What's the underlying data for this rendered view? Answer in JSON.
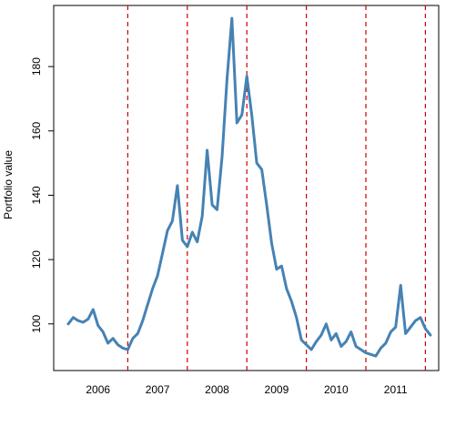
{
  "chart_data": {
    "type": "line",
    "title": "",
    "xlabel": "",
    "ylabel": "Portfolio value",
    "ylim": [
      85.5,
      199
    ],
    "yticks": [
      100,
      120,
      140,
      160,
      180
    ],
    "x_categories": [
      "2006",
      "2007",
      "2008",
      "2009",
      "2010",
      "2011"
    ],
    "year_boundaries": [
      "2007-01",
      "2008-01",
      "2009-01",
      "2010-01",
      "2011-01",
      "2012-01"
    ],
    "grid": false,
    "legend": "none",
    "series": [
      {
        "color": "#4682b4",
        "line_style": "solid",
        "points": [
          [
            "2006-01",
            100
          ],
          [
            "2006-02",
            102
          ],
          [
            "2006-03",
            101
          ],
          [
            "2006-04",
            100.5
          ],
          [
            "2006-05",
            101.5
          ],
          [
            "2006-06",
            104.5
          ],
          [
            "2006-07",
            99.5
          ],
          [
            "2006-08",
            97.5
          ],
          [
            "2006-09",
            94
          ],
          [
            "2006-10",
            95.5
          ],
          [
            "2006-11",
            93.5
          ],
          [
            "2006-12",
            92.5
          ],
          [
            "2007-01",
            92
          ],
          [
            "2007-02",
            95.5
          ],
          [
            "2007-03",
            97
          ],
          [
            "2007-04",
            101
          ],
          [
            "2007-05",
            106
          ],
          [
            "2007-06",
            111
          ],
          [
            "2007-07",
            115
          ],
          [
            "2007-08",
            122
          ],
          [
            "2007-09",
            129
          ],
          [
            "2007-10",
            132
          ],
          [
            "2007-11",
            143
          ],
          [
            "2007-12",
            126
          ],
          [
            "2008-01",
            124
          ],
          [
            "2008-02",
            128.5
          ],
          [
            "2008-03",
            125.5
          ],
          [
            "2008-04",
            133.5
          ],
          [
            "2008-05",
            154
          ],
          [
            "2008-06",
            137
          ],
          [
            "2008-07",
            135.5
          ],
          [
            "2008-08",
            152
          ],
          [
            "2008-09",
            176
          ],
          [
            "2008-10",
            195
          ],
          [
            "2008-11",
            162.5
          ],
          [
            "2008-12",
            165
          ],
          [
            "2009-01",
            177
          ],
          [
            "2009-02",
            165
          ],
          [
            "2009-03",
            150
          ],
          [
            "2009-04",
            148
          ],
          [
            "2009-05",
            137
          ],
          [
            "2009-06",
            125
          ],
          [
            "2009-07",
            117
          ],
          [
            "2009-08",
            118
          ],
          [
            "2009-09",
            111
          ],
          [
            "2009-10",
            107
          ],
          [
            "2009-11",
            102
          ],
          [
            "2009-12",
            95
          ],
          [
            "2010-01",
            93.5
          ],
          [
            "2010-02",
            92
          ],
          [
            "2010-03",
            94.5
          ],
          [
            "2010-04",
            96.5
          ],
          [
            "2010-05",
            100
          ],
          [
            "2010-06",
            95
          ],
          [
            "2010-07",
            97
          ],
          [
            "2010-08",
            93
          ],
          [
            "2010-09",
            94.5
          ],
          [
            "2010-10",
            97.5
          ],
          [
            "2010-11",
            93
          ],
          [
            "2010-12",
            92
          ],
          [
            "2011-01",
            91
          ],
          [
            "2011-02",
            90.5
          ],
          [
            "2011-03",
            90
          ],
          [
            "2011-04",
            92.5
          ],
          [
            "2011-05",
            94
          ],
          [
            "2011-06",
            97.5
          ],
          [
            "2011-07",
            99
          ],
          [
            "2011-08",
            112
          ],
          [
            "2011-09",
            97
          ],
          [
            "2011-10",
            99
          ],
          [
            "2011-11",
            101
          ],
          [
            "2011-12",
            102
          ],
          [
            "2012-01",
            98.5
          ],
          [
            "2012-02",
            96.5
          ]
        ]
      }
    ],
    "reference_lines": {
      "color": "#cc0000",
      "line_style": "dashed",
      "at": [
        "2007-01",
        "2008-01",
        "2009-01",
        "2010-01",
        "2011-01",
        "2012-01"
      ]
    }
  }
}
